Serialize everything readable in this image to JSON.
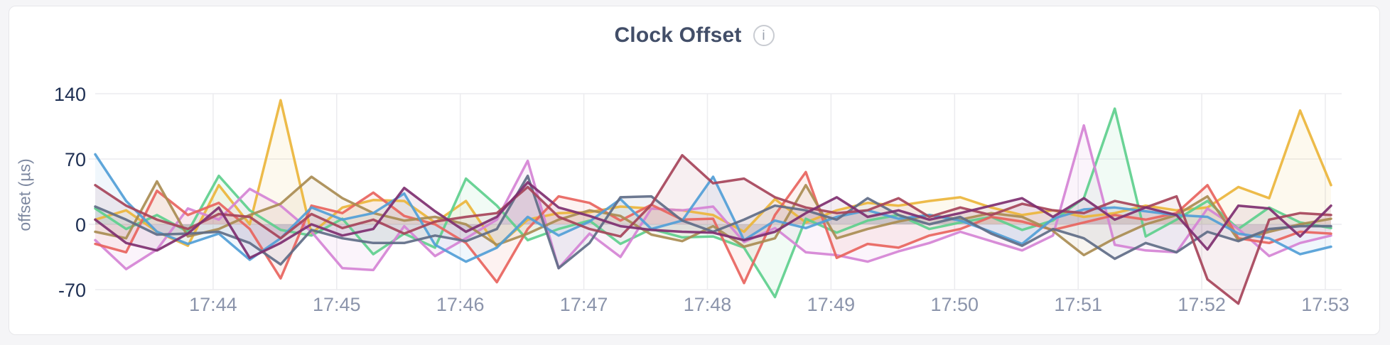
{
  "header": {
    "title": "Clock Offset",
    "info_glyph": "i"
  },
  "palette": {
    "page_background": "#f5f5f7",
    "card_background": "#ffffff",
    "card_border": "#e7e7ea",
    "grid_line": "#ececef",
    "y_tick_text": "#1d2e52",
    "x_tick_text": "#8b94ab",
    "axis_title_text": "#7d88a0",
    "title_text": "#424e68"
  },
  "chart_data": {
    "type": "line",
    "title": "Clock Offset",
    "xlabel": "",
    "ylabel": "offset (µs)",
    "legend": "none",
    "grid": true,
    "ylim": [
      -70,
      140
    ],
    "y_ticks": [
      140,
      70,
      0,
      -70
    ],
    "x_ticks": [
      "17:44",
      "17:45",
      "17:46",
      "17:47",
      "17:48",
      "17:49",
      "17:50",
      "17:51",
      "17:52",
      "17:53"
    ],
    "x_start": "17:43",
    "sample_interval_seconds": 15,
    "fill_to_zero": true,
    "series": [
      {
        "name": "series-1",
        "color": "#ECB53B",
        "values": [
          5,
          15,
          -8,
          -23,
          42,
          0,
          133,
          -10,
          18,
          26,
          25,
          2,
          25,
          -24,
          5,
          12,
          13,
          19,
          17,
          15,
          10,
          -8,
          27,
          2,
          15,
          23,
          20,
          25,
          29,
          18,
          10,
          15,
          8,
          12,
          20,
          15,
          18,
          40,
          28,
          122,
          42
        ]
      },
      {
        "name": "series-2",
        "color": "#5ECF8D",
        "values": [
          17,
          -5,
          10,
          -8,
          52,
          15,
          -6,
          -12,
          6,
          -32,
          -10,
          -25,
          49,
          20,
          -17,
          -5,
          4,
          -21,
          -5,
          -14,
          -13,
          -25,
          -78,
          6,
          -9,
          4,
          10,
          -5,
          2,
          8,
          -6,
          4,
          28,
          124,
          -13,
          5,
          25,
          -5,
          18,
          2,
          -4
        ]
      },
      {
        "name": "series-3",
        "color": "#D583D5",
        "values": [
          -17,
          -48,
          -27,
          17,
          5,
          38,
          20,
          -8,
          -47,
          -49,
          -2,
          -34,
          -15,
          5,
          68,
          -47,
          -10,
          -35,
          17,
          15,
          19,
          -19,
          -4,
          -30,
          -33,
          -40,
          -29,
          -20,
          -8,
          -18,
          -28,
          -12,
          106,
          -22,
          -28,
          -30,
          17,
          -5,
          -34,
          -20,
          -12
        ]
      },
      {
        "name": "series-4",
        "color": "#E8645E",
        "values": [
          -21,
          -30,
          36,
          10,
          23,
          -5,
          -58,
          20,
          12,
          34,
          9,
          0,
          -20,
          -62,
          -5,
          30,
          23,
          4,
          21,
          5,
          6,
          -63,
          10,
          56,
          -36,
          -21,
          -25,
          -12,
          -5,
          8,
          3,
          -6,
          2,
          10,
          5,
          12,
          42,
          -15,
          -20,
          -8,
          -10
        ]
      },
      {
        "name": "series-5",
        "color": "#A98C52",
        "values": [
          -8,
          -15,
          46,
          -13,
          -5,
          10,
          22,
          51,
          28,
          12,
          4,
          8,
          0,
          -22,
          -10,
          5,
          15,
          9,
          -11,
          -18,
          -2,
          -24,
          -15,
          42,
          -15,
          -5,
          3,
          10,
          5,
          12,
          8,
          -7,
          -33,
          -15,
          0,
          10,
          30,
          -17,
          -8,
          0,
          6
        ]
      },
      {
        "name": "series-6",
        "color": "#519ED7",
        "values": [
          75,
          25,
          -8,
          -21,
          -10,
          -38,
          -15,
          18,
          5,
          12,
          33,
          -22,
          -40,
          -25,
          8,
          -12,
          3,
          27,
          -5,
          4,
          51,
          -17,
          4,
          -4,
          8,
          15,
          6,
          10,
          4,
          -8,
          -21,
          6,
          16,
          18,
          14,
          10,
          8,
          -10,
          -15,
          -32,
          -24
        ]
      },
      {
        "name": "series-7",
        "color": "#5F6C87",
        "values": [
          19,
          5,
          -11,
          -10,
          -8,
          -20,
          -43,
          -6,
          -15,
          -20,
          -20,
          -12,
          -18,
          -5,
          52,
          -47,
          -20,
          29,
          30,
          4,
          -8,
          5,
          20,
          15,
          5,
          28,
          10,
          0,
          8,
          -10,
          -23,
          -5,
          -15,
          -37,
          -20,
          -30,
          -8,
          -18,
          -5,
          -2,
          -2
        ]
      },
      {
        "name": "series-8",
        "color": "#A6445A",
        "values": [
          42,
          20,
          5,
          -5,
          11,
          8,
          -15,
          11,
          -4,
          5,
          -10,
          3,
          8,
          12,
          40,
          8,
          -5,
          -13,
          21,
          74,
          44,
          49,
          29,
          18,
          12,
          15,
          28,
          8,
          18,
          10,
          22,
          15,
          12,
          25,
          18,
          30,
          -59,
          -85,
          5,
          12,
          10
        ]
      },
      {
        "name": "series-9",
        "color": "#7E2F70",
        "values": [
          5,
          -20,
          -28,
          -10,
          18,
          -36,
          -20,
          0,
          -12,
          -5,
          39,
          14,
          -8,
          8,
          45,
          18,
          9,
          -2,
          -6,
          -8,
          -9,
          -17,
          -8,
          12,
          29,
          8,
          15,
          5,
          12,
          20,
          28,
          8,
          28,
          5,
          18,
          10,
          -27,
          20,
          17,
          -13,
          20
        ]
      }
    ]
  }
}
